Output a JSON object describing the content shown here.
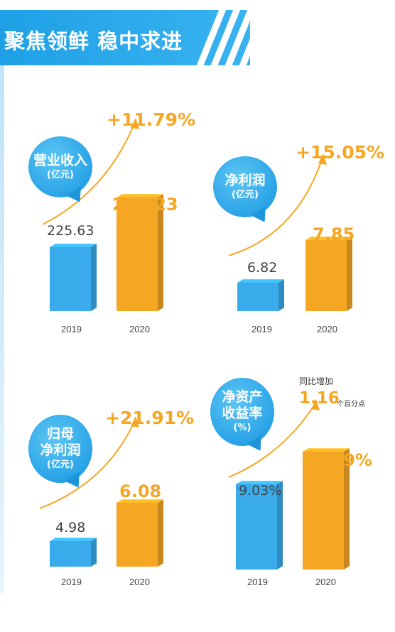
{
  "header": {
    "title": "聚焦领鲜 稳中求进"
  },
  "colors": {
    "blue": "#3aabea",
    "orange": "#f5a623",
    "header_blue": "#1fa0e6"
  },
  "chart_data": [
    {
      "type": "bar",
      "title_lines": [
        "营业收入",
        "(亿元)"
      ],
      "categories": [
        "2019",
        "2020"
      ],
      "values": [
        225.63,
        252.23
      ],
      "value_labels": [
        "225.63",
        "252.23"
      ],
      "growth": "+11.79%"
    },
    {
      "type": "bar",
      "title_lines": [
        "净利润",
        "(亿元)"
      ],
      "categories": [
        "2019",
        "2020"
      ],
      "values": [
        6.82,
        7.85
      ],
      "value_labels": [
        "6.82",
        "7.85"
      ],
      "growth": "+15.05%"
    },
    {
      "type": "bar",
      "title_lines": [
        "归母",
        "净利润",
        "(亿元)"
      ],
      "categories": [
        "2019",
        "2020"
      ],
      "values": [
        4.98,
        6.08
      ],
      "value_labels": [
        "4.98",
        "6.08"
      ],
      "growth": "+21.91%"
    },
    {
      "type": "bar",
      "title_lines": [
        "净资产",
        "收益率",
        "(%)"
      ],
      "categories": [
        "2019",
        "2020"
      ],
      "values": [
        9.03,
        10.19
      ],
      "value_labels": [
        "9.03%",
        "10.19%"
      ],
      "growth_note": {
        "prefix": "同比增加",
        "value": "1.16",
        "unit": "个百分点"
      }
    }
  ]
}
